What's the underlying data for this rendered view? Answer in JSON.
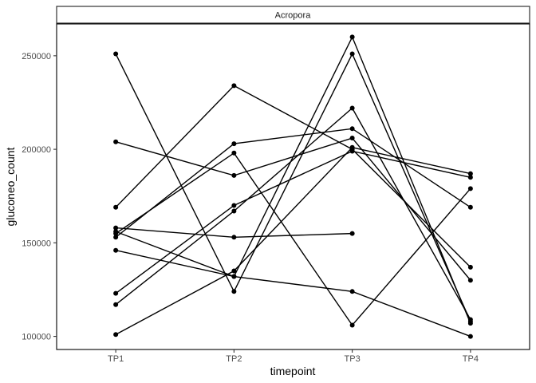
{
  "chart_data": {
    "type": "line",
    "facet_label": "Acropora",
    "xlabel": "timepoint",
    "ylabel": "gluconeo_count",
    "categories": [
      "TP1",
      "TP2",
      "TP3",
      "TP4"
    ],
    "ylim": [
      93000,
      267000
    ],
    "yticks": [
      100000,
      150000,
      200000,
      250000
    ],
    "ytick_labels": [
      "100000",
      "150000",
      "200000",
      "250000"
    ],
    "grid": false,
    "legend": "none",
    "line_color": "#000000",
    "series": [
      {
        "values": [
          251000,
          124000,
          251000,
          108000
        ]
      },
      {
        "values": [
          204000,
          186000,
          206000,
          130000
        ]
      },
      {
        "values": [
          169000,
          234000,
          200000,
          137000
        ]
      },
      {
        "values": [
          158000,
          153000,
          155000,
          null
        ]
      },
      {
        "values": [
          156000,
          132000,
          260000,
          107000
        ]
      },
      {
        "values": [
          153000,
          203000,
          211000,
          169000
        ]
      },
      {
        "values": [
          146000,
          132000,
          124000,
          100000
        ]
      },
      {
        "values": [
          123000,
          170000,
          199000,
          185000
        ]
      },
      {
        "values": [
          117000,
          167000,
          222000,
          109000
        ]
      },
      {
        "values": [
          101000,
          135000,
          201000,
          187000
        ]
      },
      {
        "values": [
          155000,
          198000,
          106000,
          179000
        ]
      }
    ]
  }
}
